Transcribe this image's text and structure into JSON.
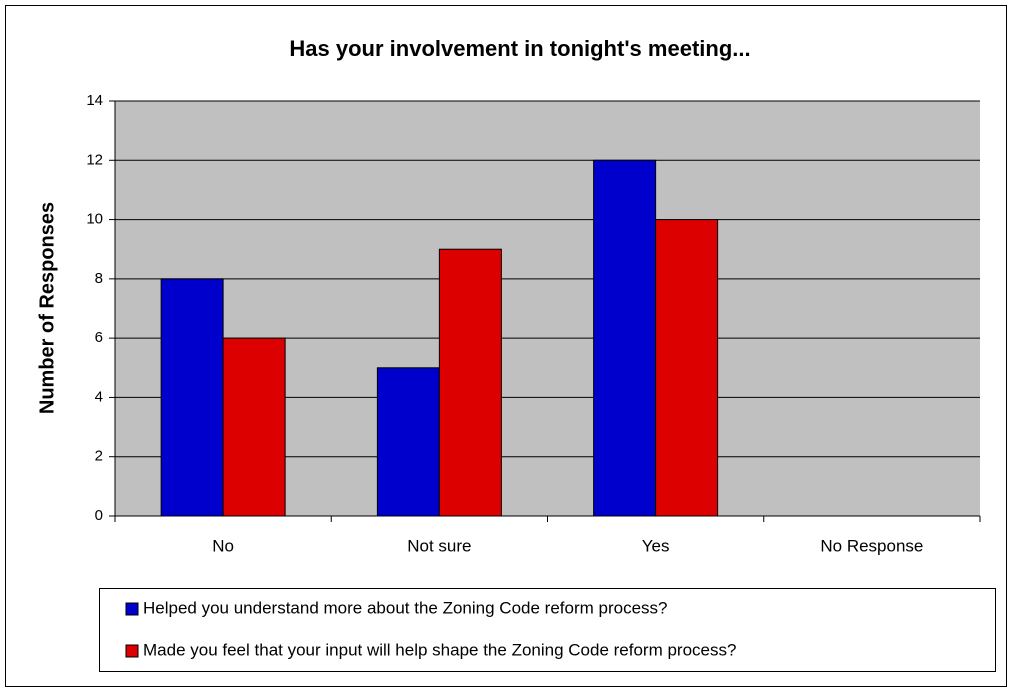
{
  "chart_data": {
    "type": "bar",
    "title": "Has your involvement in tonight's meeting...",
    "y_label": "Number of Responses",
    "categories": [
      "No",
      "Not sure",
      "Yes",
      "No Response"
    ],
    "series": [
      {
        "name": "Helped you understand more about the Zoning Code reform process?",
        "color": "#0000cc",
        "values": [
          8,
          5,
          12,
          0
        ]
      },
      {
        "name": "Made you feel that your input will help shape the Zoning Code reform process?",
        "color": "#dd0000",
        "values": [
          6,
          9,
          10,
          0
        ]
      }
    ],
    "ylim": [
      0,
      14
    ],
    "yticks": [
      0,
      2,
      4,
      6,
      8,
      10,
      12,
      14
    ],
    "grid": true,
    "legend": "bottom"
  }
}
